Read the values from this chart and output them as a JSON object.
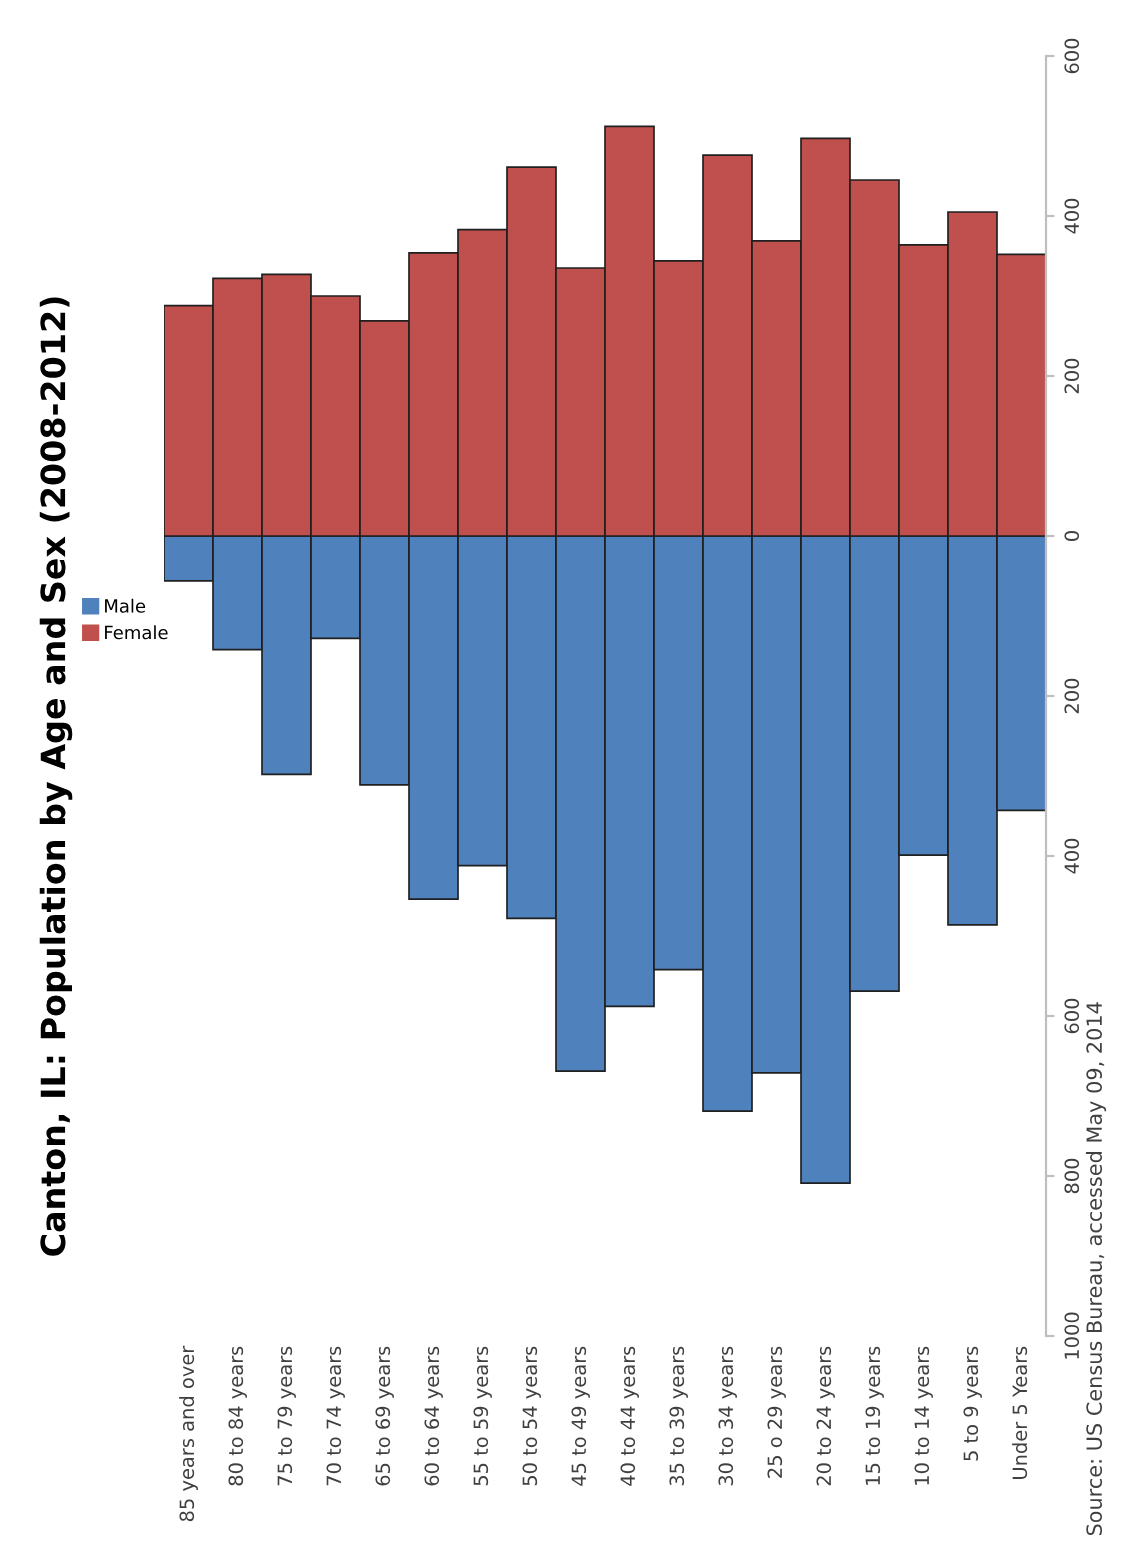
{
  "chart_data": {
    "type": "bar",
    "title": "Canton, IL: Population by Age and Sex (2008-2012)",
    "categories": [
      "85 years and over",
      "80 to 84 years",
      "75 to 79 years",
      "70 to 74 years",
      "65 to 69 years",
      "60 to 64 years",
      "55 to 59 years",
      "50 to 54 years",
      "45 to 49 years",
      "40 to 44 years",
      "35 to 39 years",
      "30 to 34 years",
      "25 o 29 years",
      "20 to 24 years",
      "15 to 19 years",
      "10 to 14 years",
      "5 to 9 years",
      "Under 5 Years"
    ],
    "series": [
      {
        "name": "Male",
        "color": "#4f81bd",
        "values": [
          -56,
          -142,
          -298,
          -128,
          -311,
          -454,
          -412,
          -478,
          -669,
          -588,
          -542,
          -719,
          -671,
          -809,
          -569,
          -399,
          -486,
          -343
        ]
      },
      {
        "name": "Female",
        "color": "#c0504d",
        "values": [
          288,
          322,
          327,
          300,
          269,
          354,
          383,
          461,
          335,
          512,
          344,
          476,
          369,
          497,
          445,
          364,
          405,
          352
        ]
      }
    ],
    "ylim": [
      -1000,
      600
    ],
    "yticks": [
      {
        "value": -1000,
        "label": "1000"
      },
      {
        "value": -800,
        "label": "800"
      },
      {
        "value": -600,
        "label": "600"
      },
      {
        "value": -400,
        "label": "400"
      },
      {
        "value": -200,
        "label": "200"
      },
      0,
      200,
      400,
      600
    ],
    "legend": "left",
    "stacked": true,
    "grid": false,
    "annotations": [
      "Source: US Census Bureau, accessed May 09, 2014"
    ]
  }
}
